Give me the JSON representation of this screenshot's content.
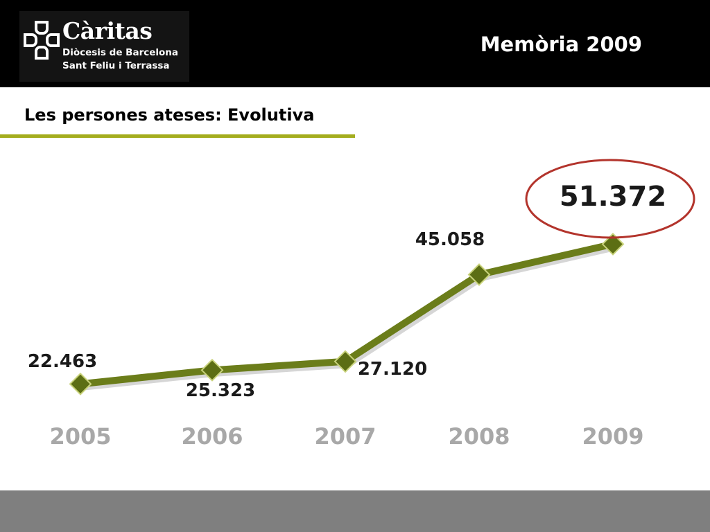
{
  "header": {
    "logo_name": "Càritas",
    "logo_line1": "Diòcesis de Barcelona",
    "logo_line2": "Sant Feliu i Terrassa",
    "title": "Memòria 2009",
    "background": "#000000"
  },
  "section": {
    "title": "Les persones ateses: Evolutiva",
    "rule_color": "#a4ad1e"
  },
  "chart_data": {
    "type": "line",
    "categories": [
      "2005",
      "2006",
      "2007",
      "2008",
      "2009"
    ],
    "values": [
      22463,
      25323,
      27120,
      45058,
      51372
    ],
    "labels": [
      "22.463",
      "25.323",
      "27.120",
      "45.058",
      "51.372"
    ],
    "highlight": "51.372",
    "line_color": "#6b7d1a",
    "marker_color": "#5c6e14",
    "highlight_ring_color": "#b3342c",
    "axis_label_color": "#a8a8a8",
    "grid": false,
    "legend": "none"
  },
  "footer": {
    "background": "#7f7f7f"
  }
}
